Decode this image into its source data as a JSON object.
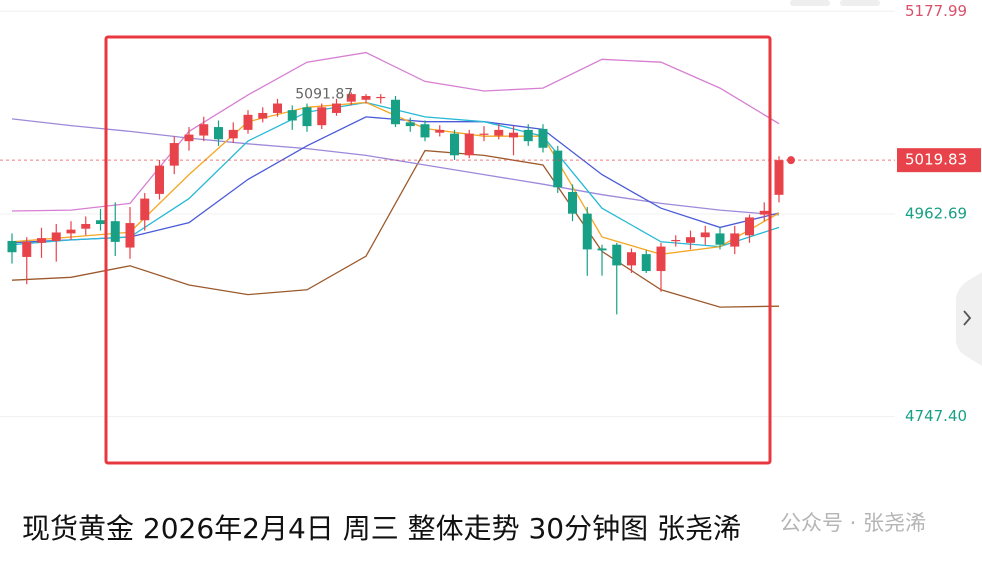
{
  "chart_data": {
    "type": "candlestick",
    "open": [
      4934,
      4917,
      4932,
      4934,
      4942,
      4947,
      4956,
      4955,
      4927,
      4956,
      4984,
      5014,
      5040,
      5046,
      5055,
      5043,
      5052,
      5064,
      5070,
      5073,
      5076,
      5057,
      5070,
      5082,
      5084,
      5086,
      5084,
      5060,
      5058,
      5049,
      5048,
      5025,
      5047,
      5046,
      5044,
      5052,
      5053,
      5030,
      4986,
      4963,
      4926,
      4930,
      4908,
      4920,
      4902,
      4934,
      4932,
      4938,
      4942,
      4928,
      4940,
      4962,
      4983
    ],
    "high": [
      4942,
      4938,
      4948,
      4952,
      4955,
      4960,
      4968,
      4975,
      4970,
      4985,
      5020,
      5045,
      5055,
      5066,
      5062,
      5060,
      5073,
      5076,
      5085,
      5078,
      5080,
      5080,
      5085,
      5091.87,
      5090,
      5090,
      5088,
      5065,
      5062,
      5057,
      5052,
      5052,
      5056,
      5058,
      5056,
      5058,
      5058,
      5035,
      4994,
      4970,
      4930,
      4932,
      4926,
      4924,
      4932,
      4940,
      4945,
      4950,
      4948,
      4950,
      4962,
      4975,
      5024
    ],
    "low": [
      4910,
      4888,
      4916,
      4912,
      4935,
      4940,
      4945,
      4918,
      4915,
      4945,
      4978,
      5005,
      5030,
      5040,
      5035,
      5038,
      5048,
      5060,
      5066,
      5052,
      5050,
      5053,
      5067,
      5078,
      5080,
      5080,
      5055,
      5050,
      5040,
      5045,
      5020,
      5022,
      5040,
      5042,
      5025,
      5035,
      5028,
      4985,
      4955,
      4897,
      4897,
      4856,
      4900,
      4900,
      4880,
      4928,
      4925,
      4930,
      4925,
      4920,
      4932,
      4955,
      4975
    ],
    "close": [
      4922,
      4933,
      4937,
      4943,
      4946,
      4952,
      4952,
      4933,
      4953,
      4979,
      5014,
      5038,
      5047,
      5058,
      5042,
      5052,
      5068,
      5070,
      5080,
      5062,
      5056,
      5076,
      5080,
      5090,
      5088,
      5087,
      5058,
      5056,
      5044,
      5052,
      5025,
      5048,
      5048,
      5052,
      5049,
      5040,
      5033,
      4991,
      4963,
      4925,
      4924,
      4908,
      4922,
      4902,
      4928,
      4935,
      4938,
      4943,
      4930,
      4942,
      4959,
      4966,
      5019.83
    ],
    "up_color": "#e8434a",
    "down_color": "#17a085",
    "lines": [
      {
        "color": "#d77fd2",
        "x": [
          0,
          4,
          8,
          12,
          16,
          20,
          24,
          28,
          32,
          36,
          40,
          44,
          48,
          52
        ],
        "values": [
          4965.8,
          4966.8,
          4973.9,
          5050.4,
          5089.2,
          5123.9,
          5134.1,
          5103.5,
          5093.3,
          5096.4,
          5127,
          5123.9,
          5096.4,
          5058.6
        ]
      },
      {
        "color": "#9c5a2c",
        "x": [
          0,
          4,
          8,
          12,
          16,
          20,
          24,
          28,
          32,
          36,
          40,
          44,
          48,
          52
        ],
        "values": [
          4892.3,
          4895.4,
          4907.6,
          4887.2,
          4877,
          4882.1,
          4917.8,
          5030,
          5024.9,
          5014.7,
          4922.9,
          4882.1,
          4863.7,
          4864.7
        ]
      },
      {
        "color": "#9d89d9",
        "x": [
          0,
          4,
          8,
          12,
          16,
          20,
          24,
          28,
          32,
          36,
          40,
          44,
          48,
          52
        ],
        "values": [
          5063.7,
          5056.6,
          5050.4,
          5043.3,
          5037.2,
          5032.1,
          5024.9,
          5014.7,
          5004.5,
          4994.3,
          4983.1,
          4973.9,
          4966.8,
          4961.7
        ]
      },
      {
        "color": "#4b5bd6",
        "x": [
          0,
          4,
          8,
          12,
          16,
          20,
          24,
          28,
          32,
          36,
          40,
          44,
          48,
          52
        ],
        "values": [
          4932.1,
          4935.1,
          4938.2,
          4953.5,
          4999.4,
          5035.1,
          5065.8,
          5060.7,
          5060.7,
          5052.5,
          5004.5,
          4968.8,
          4948.4,
          4963.7
        ]
      },
      {
        "color": "#27b9d6",
        "x": [
          0,
          4,
          8,
          12,
          16,
          20,
          24,
          28,
          32,
          36,
          40,
          44,
          48,
          52
        ],
        "values": [
          4930,
          4935.1,
          4938.2,
          4979,
          5040.2,
          5070.9,
          5081.1,
          5065.8,
          5060.7,
          5045.3,
          4968.8,
          4933.1,
          4928,
          4948.4
        ]
      },
      {
        "color": "#f5a623",
        "x": [
          0,
          4,
          8,
          12,
          16,
          20,
          24,
          28,
          32,
          36,
          40,
          44,
          48,
          52
        ],
        "values": [
          4933.1,
          4938.2,
          4943.3,
          5004.5,
          5060.7,
          5076,
          5081.1,
          5053.5,
          5045.3,
          5045.3,
          4938.2,
          4919.8,
          4928,
          4963.7
        ]
      }
    ],
    "ylim": [
      4680,
      5190
    ],
    "yticks": [
      {
        "value": 5177.99,
        "label": "5177.99"
      },
      {
        "value": 4962.69,
        "label": "4962.69"
      },
      {
        "value": 4747.4,
        "label": "4747.40"
      }
    ],
    "ytick_colors": [
      "#d9506a",
      "#17a085",
      "#17a085"
    ],
    "grid": true
  },
  "caption": "现货黄金 2026年2月4日 周三 整体走势 30分钟图 张尧浠",
  "watermark": "公众号 · 张尧浠"
}
